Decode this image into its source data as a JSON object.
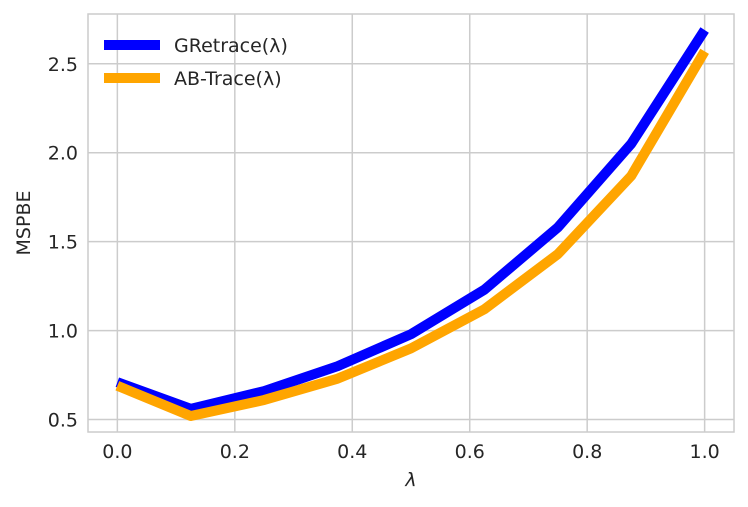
{
  "chart_data": {
    "type": "line",
    "title": "",
    "xlabel": "λ",
    "ylabel": "MSPBE",
    "xlim": [
      -0.05,
      1.05
    ],
    "ylim": [
      0.43,
      2.78
    ],
    "xticks": [
      0.0,
      0.2,
      0.4,
      0.6,
      0.8,
      1.0
    ],
    "xtick_labels": [
      "0.0",
      "0.2",
      "0.4",
      "0.6",
      "0.8",
      "1.0"
    ],
    "yticks": [
      0.5,
      1.0,
      1.5,
      2.0,
      2.5
    ],
    "ytick_labels": [
      "0.5",
      "1.0",
      "1.5",
      "2.0",
      "2.5"
    ],
    "grid": true,
    "legend": "top-left",
    "x": [
      0.0,
      0.125,
      0.25,
      0.375,
      0.5,
      0.625,
      0.75,
      0.875,
      1.0
    ],
    "series": [
      {
        "name": "GRetrace(λ)",
        "color": "#0000ff",
        "values": [
          0.71,
          0.56,
          0.66,
          0.8,
          0.98,
          1.23,
          1.58,
          2.05,
          2.69
        ]
      },
      {
        "name": "AB-Trace(λ)",
        "color": "#ffa500",
        "values": [
          0.69,
          0.52,
          0.61,
          0.73,
          0.9,
          1.12,
          1.43,
          1.87,
          2.57
        ]
      }
    ]
  }
}
